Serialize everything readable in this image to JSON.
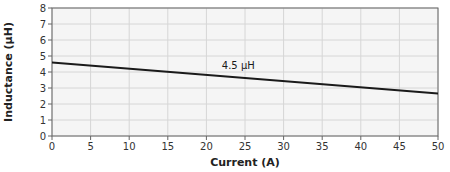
{
  "chart_data": {
    "type": "line",
    "x": [
      0,
      50
    ],
    "values": [
      4.6,
      2.65
    ],
    "color": "#1a1a1a",
    "xlabel": "Current (A)",
    "ylabel": "Inductance (μH)",
    "xlim": [
      0,
      50
    ],
    "ylim": [
      0,
      8
    ],
    "xticks": [
      0,
      5,
      10,
      15,
      20,
      25,
      30,
      35,
      40,
      45,
      50
    ],
    "yticks": [
      0,
      1,
      2,
      3,
      4,
      5,
      6,
      7,
      8
    ],
    "grid": true,
    "annotations": [
      {
        "text": "4.5 μH",
        "x": 22,
        "y": 4.05
      }
    ]
  }
}
